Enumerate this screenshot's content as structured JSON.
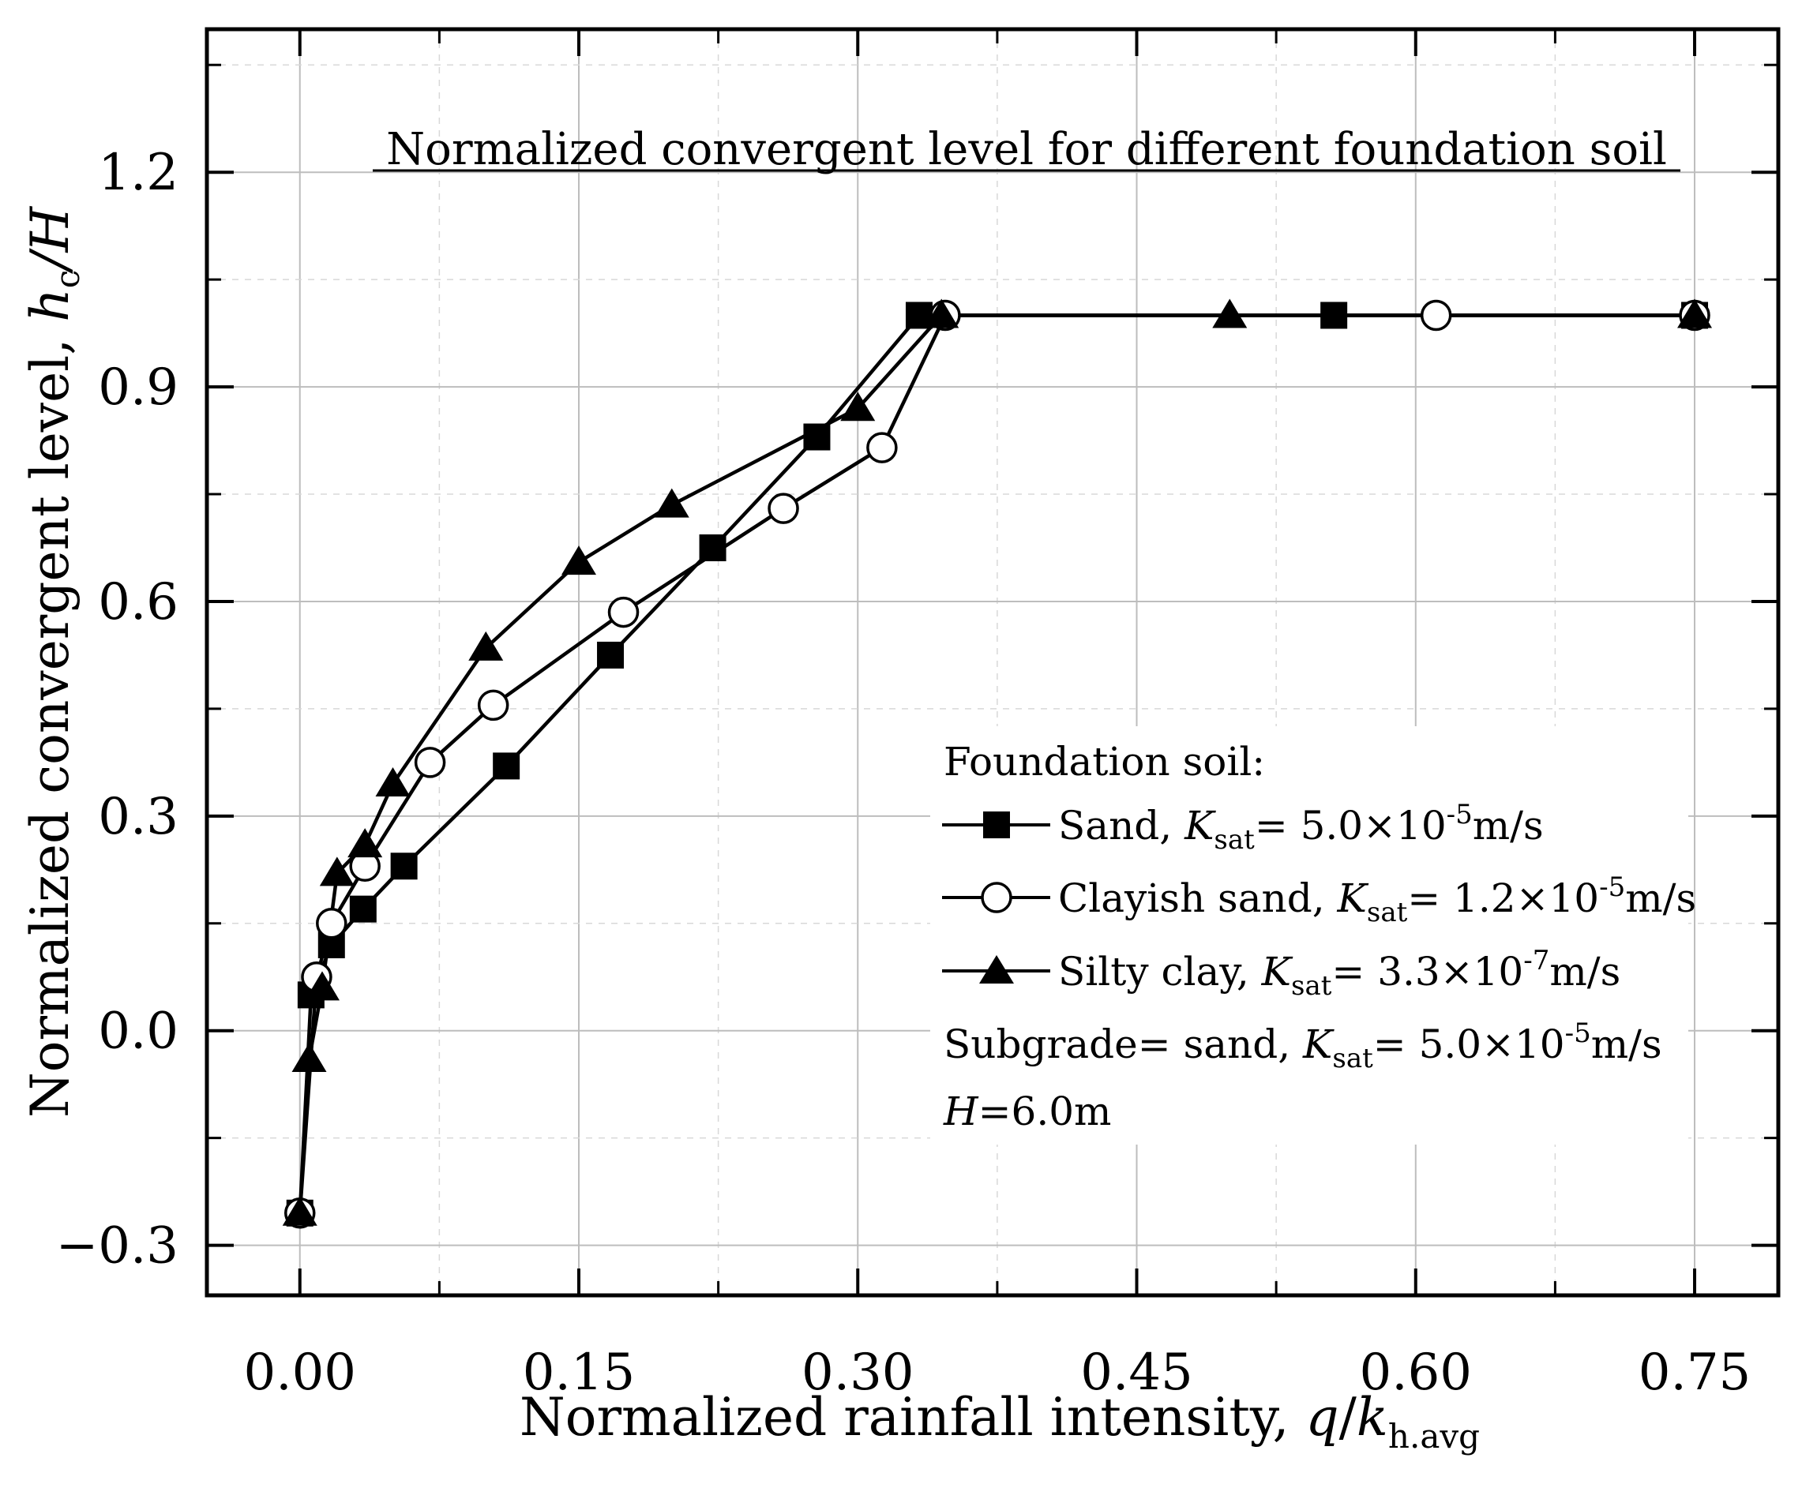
{
  "chart_data": {
    "type": "line",
    "title": "Normalized convergent level for different foundation soil",
    "xlabel": {
      "main": "Normalized rainfall intensity, ",
      "var": "q",
      "slash": "/",
      "var2": "k",
      "sub": "h.avg"
    },
    "ylabel": {
      "main": "Normalized convergent level, ",
      "var": "h",
      "sub": "c",
      "tail": "/H"
    },
    "xlim": [
      -0.05,
      0.795
    ],
    "ylim": [
      -0.37,
      1.4
    ],
    "xticks": [
      0.0,
      0.15,
      0.3,
      0.45,
      0.6,
      0.75
    ],
    "xtick_labels": [
      "0.00",
      "0.15",
      "0.30",
      "0.45",
      "0.60",
      "0.75"
    ],
    "yticks": [
      -0.3,
      0.0,
      0.3,
      0.6,
      0.9,
      1.2
    ],
    "ytick_labels": [
      "−0.3",
      "0.0",
      "0.3",
      "0.6",
      "0.9",
      "1.2"
    ],
    "grid": true,
    "series": [
      {
        "name": "Sand",
        "marker": "square-filled",
        "x": [
          0.0,
          0.006,
          0.017,
          0.034,
          0.056,
          0.111,
          0.167,
          0.222,
          0.278,
          0.333,
          0.556,
          0.75
        ],
        "y": [
          -0.255,
          0.05,
          0.12,
          0.17,
          0.23,
          0.37,
          0.525,
          0.675,
          0.83,
          1.0,
          1.0,
          1.0
        ]
      },
      {
        "name": "Clayish sand",
        "marker": "circle-open",
        "x": [
          0.0,
          0.009,
          0.017,
          0.035,
          0.07,
          0.104,
          0.174,
          0.26,
          0.313,
          0.347,
          0.611,
          0.75
        ],
        "y": [
          -0.255,
          0.075,
          0.15,
          0.23,
          0.375,
          0.455,
          0.585,
          0.73,
          0.815,
          1.0,
          1.0,
          1.0
        ]
      },
      {
        "name": "Silty clay",
        "marker": "triangle-filled",
        "x": [
          0.0,
          0.005,
          0.012,
          0.02,
          0.035,
          0.05,
          0.1,
          0.15,
          0.2,
          0.3,
          0.345,
          0.5,
          0.75
        ],
        "y": [
          -0.255,
          -0.04,
          0.06,
          0.22,
          0.26,
          0.345,
          0.535,
          0.655,
          0.735,
          0.87,
          1.0,
          1.0,
          1.0
        ]
      }
    ],
    "legend": {
      "position": "bottom-right",
      "heading": "Foundation soil:",
      "entries": [
        {
          "label": "Sand, ",
          "k": "K",
          "ksub": "sat",
          "value": "= 5.0×10",
          "exp": "-5",
          "unit": "m/s"
        },
        {
          "label": "Clayish sand, ",
          "k": "K",
          "ksub": "sat",
          "value": "= 1.2×10",
          "exp": "-5",
          "unit": "m/s"
        },
        {
          "label": "Silty clay,  ",
          "k": "K",
          "ksub": "sat",
          "value": "= 3.3×10",
          "exp": "-7",
          "unit": "m/s"
        }
      ],
      "note1": {
        "pre": "Subgrade= sand,  ",
        "k": "K",
        "ksub": "sat",
        "value": "= 5.0×10",
        "exp": "-5",
        "unit": "m/s"
      },
      "note2": {
        "var": "H",
        "rest": "=6.0m"
      }
    }
  }
}
